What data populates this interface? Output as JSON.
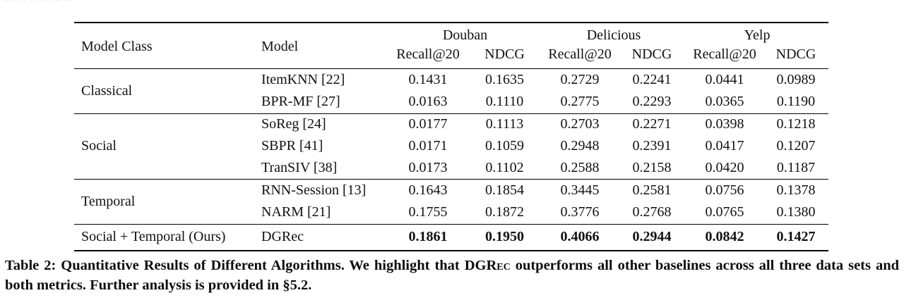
{
  "table": {
    "headers": {
      "model_class": "Model Class",
      "model": "Model",
      "recall": "Recall@20",
      "ndcg": "NDCG"
    },
    "groups": [
      "Douban",
      "Delicious",
      "Yelp"
    ],
    "sections": [
      {
        "model_class": "Classical",
        "rows": [
          {
            "model": "ItemKNN [22]",
            "values": [
              "0.1431",
              "0.1635",
              "0.2729",
              "0.2241",
              "0.0441",
              "0.0989"
            ]
          },
          {
            "model": "BPR-MF [27]",
            "values": [
              "0.0163",
              "0.1110",
              "0.2775",
              "0.2293",
              "0.0365",
              "0.1190"
            ]
          }
        ]
      },
      {
        "model_class": "Social",
        "rows": [
          {
            "model": "SoReg [24]",
            "values": [
              "0.0177",
              "0.1113",
              "0.2703",
              "0.2271",
              "0.0398",
              "0.1218"
            ]
          },
          {
            "model": "SBPR [41]",
            "values": [
              "0.0171",
              "0.1059",
              "0.2948",
              "0.2391",
              "0.0417",
              "0.1207"
            ]
          },
          {
            "model": "TranSIV [38]",
            "values": [
              "0.0173",
              "0.1102",
              "0.2588",
              "0.2158",
              "0.0420",
              "0.1187"
            ]
          }
        ]
      },
      {
        "model_class": "Temporal",
        "rows": [
          {
            "model": "RNN-Session [13]",
            "values": [
              "0.1643",
              "0.1854",
              "0.3445",
              "0.2581",
              "0.0756",
              "0.1378"
            ]
          },
          {
            "model": "NARM [21]",
            "values": [
              "0.1755",
              "0.1872",
              "0.3776",
              "0.2768",
              "0.0765",
              "0.1380"
            ]
          }
        ]
      },
      {
        "model_class": "Social + Temporal (Ours)",
        "rows": [
          {
            "model": "DGRec",
            "values": [
              "0.1861",
              "0.1950",
              "0.4066",
              "0.2944",
              "0.0842",
              "0.1427"
            ]
          }
        ]
      }
    ]
  },
  "caption": {
    "part1": "Table 2: Quantitative Results of Different Algorithms. We highlight that DGR",
    "smallcaps": "ec",
    "part2": " outperforms all other baselines across all three data sets and both metrics. Further analysis is provided in §5.2."
  },
  "colors": {
    "background": "#ffffff",
    "text": "#111111",
    "rule": "#000000"
  }
}
